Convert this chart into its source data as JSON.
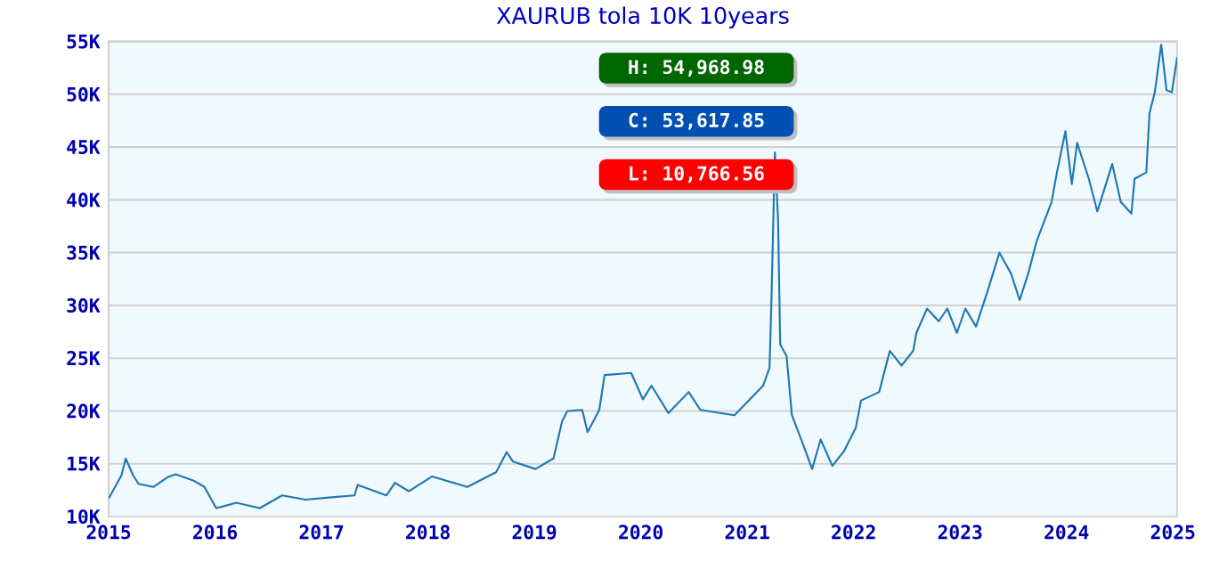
{
  "chart_data": {
    "type": "line",
    "title": "XAURUB tola 10K 10years",
    "x": [
      2015.0,
      2015.12,
      2015.16,
      2015.23,
      2015.28,
      2015.42,
      2015.55,
      2015.63,
      2015.8,
      2015.9,
      2016.01,
      2016.2,
      2016.42,
      2016.63,
      2016.85,
      2017.07,
      2017.31,
      2017.34,
      2017.61,
      2017.69,
      2017.82,
      2018.04,
      2018.37,
      2018.64,
      2018.74,
      2018.8,
      2019.01,
      2019.18,
      2019.26,
      2019.31,
      2019.45,
      2019.5,
      2019.61,
      2019.66,
      2019.91,
      2020.02,
      2020.1,
      2020.26,
      2020.45,
      2020.56,
      2020.88,
      2021.15,
      2021.21,
      2021.23,
      2021.26,
      2021.29,
      2021.31,
      2021.37,
      2021.42,
      2021.53,
      2021.61,
      2021.69,
      2021.8,
      2021.91,
      2022.02,
      2022.07,
      2022.24,
      2022.34,
      2022.45,
      2022.56,
      2022.59,
      2022.69,
      2022.8,
      2022.88,
      2022.97,
      2023.05,
      2023.15,
      2023.26,
      2023.37,
      2023.48,
      2023.56,
      2023.64,
      2023.72,
      2023.86,
      2023.91,
      2023.99,
      2024.05,
      2024.1,
      2024.21,
      2024.29,
      2024.43,
      2024.51,
      2024.61,
      2024.64,
      2024.75,
      2024.78,
      2024.83,
      2024.89,
      2024.94,
      2024.99,
      2025.04
    ],
    "series": [
      {
        "color": "#1f77b4",
        "values": [
          11700,
          13900,
          15500,
          13900,
          13100,
          12800,
          13700,
          14000,
          13400,
          12800,
          10800,
          11300,
          10800,
          12000,
          11600,
          11800,
          12000,
          13000,
          12000,
          13200,
          12400,
          13800,
          12800,
          14200,
          16100,
          15200,
          14500,
          15500,
          19000,
          20000,
          20100,
          18000,
          20100,
          23400,
          23600,
          21100,
          22400,
          19800,
          21800,
          20100,
          19600,
          22400,
          24100,
          31400,
          44500,
          38100,
          26300,
          25200,
          19600,
          16700,
          14500,
          17300,
          14800,
          16200,
          18400,
          21000,
          21800,
          25700,
          24300,
          25700,
          27400,
          29700,
          28500,
          29700,
          27400,
          29700,
          28000,
          31400,
          35000,
          33000,
          30500,
          33000,
          36100,
          39800,
          42600,
          46500,
          41500,
          45400,
          42000,
          38900,
          43400,
          39800,
          38700,
          42000,
          42600,
          48200,
          50200,
          54700,
          50400,
          50200,
          53500
        ]
      }
    ],
    "xlim": [
      2015,
      2025.04
    ],
    "xticks": [
      2015,
      2016,
      2017,
      2018,
      2019,
      2020,
      2021,
      2022,
      2023,
      2024,
      2025
    ],
    "ylim": [
      10000,
      55000
    ],
    "yticks": [
      {
        "value": 10000,
        "label": "10K"
      },
      {
        "value": 15000,
        "label": "15K"
      },
      {
        "value": 20000,
        "label": "20K"
      },
      {
        "value": 25000,
        "label": "25K"
      },
      {
        "value": 30000,
        "label": "30K"
      },
      {
        "value": 35000,
        "label": "35K"
      },
      {
        "value": 40000,
        "label": "40K"
      },
      {
        "value": 45000,
        "label": "45K"
      },
      {
        "value": 50000,
        "label": "50K"
      },
      {
        "value": 55000,
        "label": "55K"
      }
    ],
    "grid": "y",
    "annotations": [
      "H: 54,968.98",
      "C: 53,617.85",
      "L: 10,766.56"
    ]
  }
}
